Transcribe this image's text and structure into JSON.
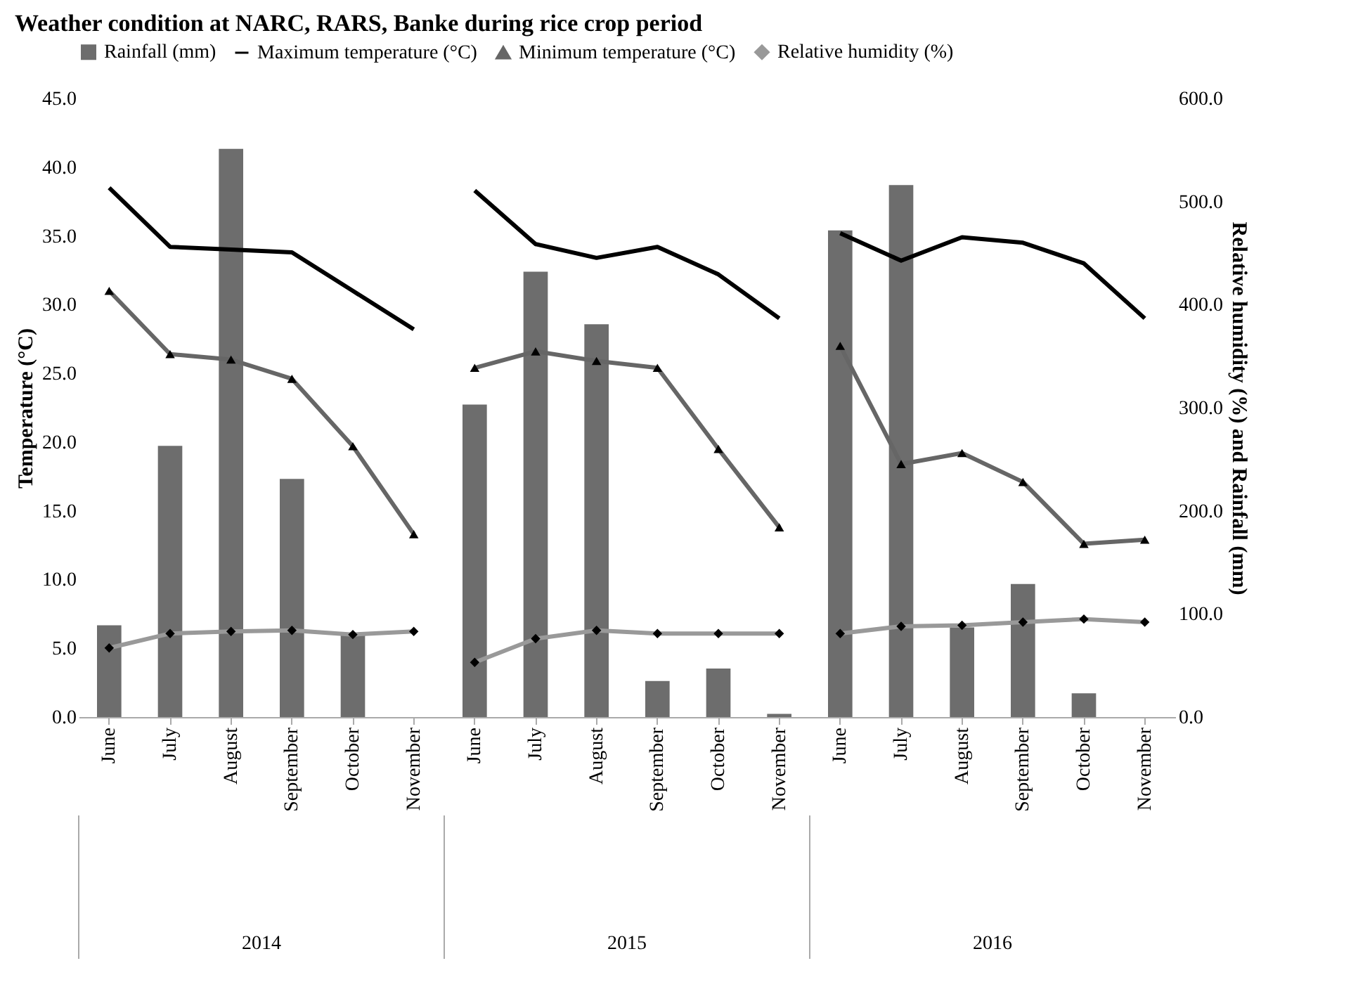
{
  "chart_data": {
    "type": "bar",
    "title": "Weather condition at NARC, RARS, Banke during rice crop period",
    "categories": [
      "June",
      "July",
      "August",
      "September",
      "October",
      "November",
      "June",
      "July",
      "August",
      "September",
      "October",
      "November",
      "June",
      "July",
      "August",
      "September",
      "October",
      "November"
    ],
    "annotations": [
      "2014",
      "2015",
      "2016"
    ],
    "ylabel": "Temperature (°C)",
    "y2label": "Relative humidity (%) and Rainfall (mm)",
    "ylim": [
      0,
      45
    ],
    "yticks": [
      {
        "value": 0,
        "label": "0.0"
      },
      {
        "value": 5,
        "label": "5.0"
      },
      {
        "value": 10,
        "label": "10.0"
      },
      {
        "value": 15,
        "label": "15.0"
      },
      {
        "value": 20,
        "label": "20.0"
      },
      {
        "value": 25,
        "label": "25.0"
      },
      {
        "value": 30,
        "label": "30.0"
      },
      {
        "value": 35,
        "label": "35.0"
      },
      {
        "value": 40,
        "label": "40.0"
      },
      {
        "value": 45,
        "label": "45.0"
      }
    ],
    "y2lim": [
      0,
      600
    ],
    "y2ticks": [
      {
        "value": 0,
        "label": "0.0"
      },
      {
        "value": 100,
        "label": "100.0"
      },
      {
        "value": 200,
        "label": "200.0"
      },
      {
        "value": 300,
        "label": "300.0"
      },
      {
        "value": 400,
        "label": "400.0"
      },
      {
        "value": 500,
        "label": "500.0"
      },
      {
        "value": 600,
        "label": "600.0"
      }
    ],
    "legend": "top",
    "grid": false,
    "series": [
      {
        "name": "Rainfall (mm)",
        "axis": "y2",
        "color": "#6d6d6d",
        "values": [
          89,
          263,
          551,
          231,
          81,
          0,
          303,
          432,
          381,
          35,
          47,
          3,
          472,
          516,
          87,
          129,
          23,
          0
        ]
      },
      {
        "name": "Maximum temperature (°C)",
        "type": "line",
        "color": "#000000",
        "marker": "none",
        "values": [
          38.5,
          34.2,
          34.0,
          33.8,
          31.0,
          28.2,
          38.3,
          34.4,
          33.4,
          34.2,
          32.2,
          29.0,
          35.2,
          33.2,
          34.9,
          34.5,
          33.0,
          29.0
        ]
      },
      {
        "name": "Minimum temperature (°C)",
        "type": "line",
        "color": "#666666",
        "marker": "triangle",
        "values": [
          31.0,
          26.4,
          26.0,
          24.6,
          19.7,
          13.3,
          25.4,
          26.6,
          25.9,
          25.4,
          19.5,
          13.8,
          27.0,
          18.4,
          19.2,
          17.1,
          12.6,
          12.9
        ]
      },
      {
        "name": "Relative humidity (%)",
        "type": "line",
        "axis": "y2",
        "color": "#999999",
        "marker": "diamond",
        "values": [
          67,
          81,
          83,
          84,
          80,
          83,
          53,
          76,
          84,
          81,
          81,
          81,
          81,
          88,
          89,
          92,
          95,
          92
        ]
      }
    ]
  }
}
